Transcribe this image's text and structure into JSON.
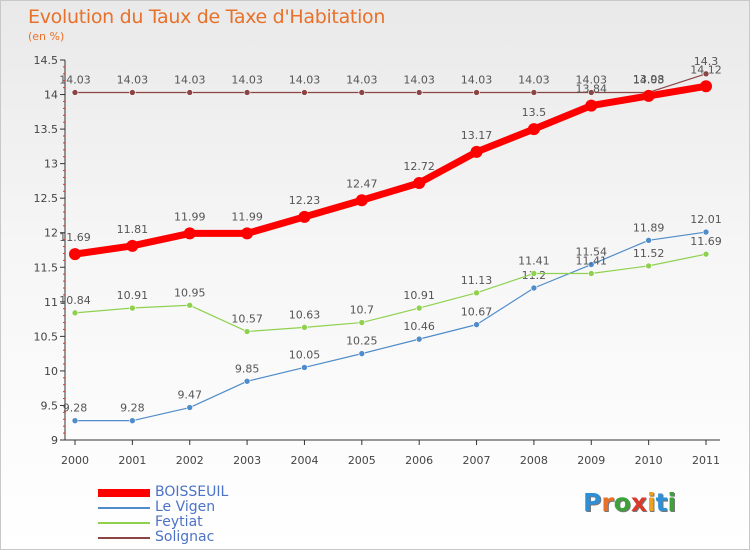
{
  "header": {
    "title": "Evolution du Taux de Taxe d'Habitation",
    "subtitle": "(en %)"
  },
  "logo": {
    "letters": [
      "P",
      "r",
      "o",
      "x",
      "i",
      "t",
      "i"
    ],
    "colors": [
      "#2d8fd5",
      "#e8712a",
      "#3da23a",
      "#d93a2c",
      "#f0a020",
      "#2d8fd5",
      "#3da23a"
    ]
  },
  "chart_data": {
    "type": "line",
    "title": "Evolution du Taux de Taxe d'Habitation",
    "subtitle": "(en %)",
    "x": [
      "2000",
      "2001",
      "2002",
      "2003",
      "2004",
      "2005",
      "2006",
      "2007",
      "2008",
      "2009",
      "2010",
      "2011"
    ],
    "ylim": [
      9,
      14.5
    ],
    "yticks": [
      "9",
      "9.5",
      "10",
      "10.5",
      "11",
      "11.5",
      "12",
      "12.5",
      "13",
      "13.5",
      "14",
      "14.5"
    ],
    "grid": false,
    "legend_position": "bottom-left",
    "series": [
      {
        "name": "BOISSEUIL",
        "color": "#ff0000",
        "values": [
          11.69,
          11.81,
          11.99,
          11.99,
          12.23,
          12.47,
          12.72,
          13.17,
          13.5,
          13.84,
          13.98,
          14.12
        ],
        "labels": [
          "11.69",
          "11.81",
          "11.99",
          "11.99",
          "12.23",
          "12.47",
          "12.72",
          "13.17",
          "13.5",
          "13.84",
          "13.98",
          "14.12"
        ]
      },
      {
        "name": "Le Vigen",
        "color": "#4f8cc9",
        "values": [
          9.28,
          9.28,
          9.47,
          9.85,
          10.05,
          10.25,
          10.46,
          10.67,
          11.2,
          11.54,
          11.89,
          12.01
        ],
        "labels": [
          "9.28",
          "9.28",
          "9.47",
          "9.85",
          "10.05",
          "10.25",
          "10.46",
          "10.67",
          "11.2",
          "11.54",
          "11.89",
          "12.01"
        ]
      },
      {
        "name": "Feytiat",
        "color": "#8fd14f",
        "values": [
          10.84,
          10.91,
          10.95,
          10.57,
          10.63,
          10.7,
          10.91,
          11.13,
          11.41,
          11.41,
          11.52,
          11.69
        ],
        "labels": [
          "10.84",
          "10.91",
          "10.95",
          "10.57",
          "10.63",
          "10.7",
          "10.91",
          "11.13",
          "11.41",
          "11.41",
          "11.52",
          "11.69"
        ]
      },
      {
        "name": "Solignac",
        "color": "#8b4545",
        "values": [
          14.03,
          14.03,
          14.03,
          14.03,
          14.03,
          14.03,
          14.03,
          14.03,
          14.03,
          14.03,
          14.03,
          14.3
        ],
        "labels": [
          "14.03",
          "14.03",
          "14.03",
          "14.03",
          "14.03",
          "14.03",
          "14.03",
          "14.03",
          "14.03",
          "14.03",
          "14.03",
          "14.3"
        ]
      }
    ]
  }
}
